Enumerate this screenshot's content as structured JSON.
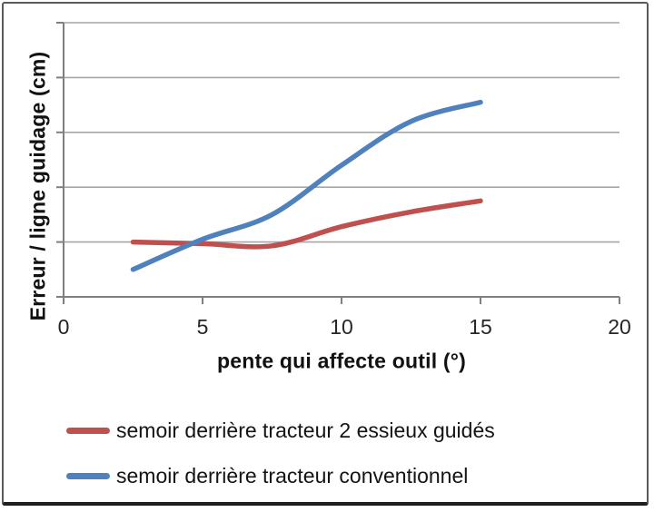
{
  "chart_data": {
    "type": "line",
    "title": "",
    "xlabel": "pente qui affecte outil (°)",
    "ylabel": "Erreur / ligne guidage (cm)",
    "xlim": [
      0,
      20
    ],
    "ylim": [
      0,
      5
    ],
    "x_ticks": [
      0,
      5,
      10,
      15,
      20
    ],
    "x_tick_labels": [
      "0",
      "5",
      "10",
      "15",
      "20"
    ],
    "y_gridlines": [
      0,
      1,
      2,
      3,
      4,
      5
    ],
    "y_tick_labels_visible": false,
    "grid": "horizontal",
    "legend_position": "bottom-left",
    "line_style": "smooth, round caps, no markers, width ~5.5px",
    "x": [
      2.5,
      5,
      7.5,
      10,
      12.5,
      15
    ],
    "series": [
      {
        "name": "semoir derrière tracteur 2 essieux guidés",
        "color": "#C0504D",
        "values": [
          1.0,
          0.97,
          0.93,
          1.28,
          1.55,
          1.75
        ]
      },
      {
        "name": "semoir derrière tracteur conventionnel",
        "color": "#4F81BD",
        "values": [
          0.5,
          1.05,
          1.5,
          2.4,
          3.2,
          3.55
        ]
      }
    ],
    "colors": {
      "gridline": "#A6A6A6",
      "axis": "#7F7F7F",
      "text": "#141414",
      "background": "#FFFFFF"
    }
  }
}
